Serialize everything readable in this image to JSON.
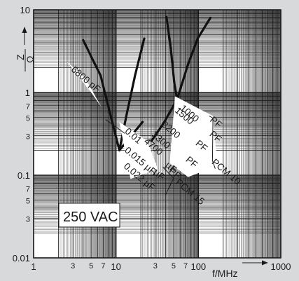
{
  "chart_data": {
    "type": "line",
    "xscale": "log",
    "yscale": "log",
    "xlim": [
      1,
      1000
    ],
    "ylim": [
      0.01,
      10
    ],
    "x_ticks": [
      {
        "v": 1,
        "t": "1",
        "small": false
      },
      {
        "v": 3,
        "t": "3",
        "small": true
      },
      {
        "v": 5,
        "t": "5",
        "small": true
      },
      {
        "v": 7,
        "t": "7",
        "small": true
      },
      {
        "v": 10,
        "t": "10",
        "small": false
      },
      {
        "v": 30,
        "t": "3",
        "small": true
      },
      {
        "v": 50,
        "t": "5",
        "small": true
      },
      {
        "v": 70,
        "t": "7",
        "small": true
      },
      {
        "v": 100,
        "t": "100",
        "small": false
      },
      {
        "v": 1000,
        "t": "1000",
        "small": false
      }
    ],
    "y_ticks": [
      {
        "v": 10,
        "t": "10",
        "small": false
      },
      {
        "v": 1,
        "t": "1",
        "small": false
      },
      {
        "v": 0.7,
        "t": "7",
        "small": true
      },
      {
        "v": 0.5,
        "t": "5",
        "small": true
      },
      {
        "v": 0.3,
        "t": "3",
        "small": true
      },
      {
        "v": 0.1,
        "t": "0.1",
        "small": false
      },
      {
        "v": 0.07,
        "t": "7",
        "small": true
      },
      {
        "v": 0.05,
        "t": "5",
        "small": true
      },
      {
        "v": 0.03,
        "t": "3",
        "small": true
      },
      {
        "v": 0.01,
        "t": "0.01",
        "small": false
      }
    ],
    "xlabel": "f/MHz",
    "ylabel_num": "Z",
    "ylabel_den": "Ω",
    "box_label": "250 VAC",
    "series": [
      {
        "key": "c6800p_left",
        "x": [
          4,
          6.5,
          8.5,
          11
        ],
        "y": [
          4.3,
          1.6,
          0.55,
          0.2
        ]
      },
      {
        "key": "c6800p_right",
        "x": [
          11,
          13.5,
          17,
          22
        ],
        "y": [
          0.2,
          0.55,
          1.6,
          4.5
        ]
      },
      {
        "key": "c6800p_ind",
        "x": [
          11,
          21
        ],
        "y": [
          0.2,
          0.44
        ]
      },
      {
        "key": "c1000p_left",
        "x": [
          41,
          46,
          51,
          55
        ],
        "y": [
          8.2,
          3.5,
          1.3,
          0.82
        ]
      },
      {
        "key": "c1000p_right",
        "x": [
          55,
          75,
          98,
          140
        ],
        "y": [
          0.82,
          2.2,
          4.5,
          8.0
        ]
      },
      {
        "key": "c1000p_ind",
        "x": [
          27,
          38,
          55
        ],
        "y": [
          0.26,
          0.43,
          0.82
        ]
      }
    ],
    "annotations": [
      {
        "t": "6800 pF",
        "x": 2.8,
        "y": 1.85,
        "rot": 40
      },
      {
        "t": "0.01",
        "x": 12.6,
        "y": 0.33,
        "rot": 40
      },
      {
        "t": "0.015 µF",
        "x": 12.5,
        "y": 0.195,
        "rot": 40
      },
      {
        "t": "0.022 µF",
        "x": 12.2,
        "y": 0.125,
        "rot": 40
      },
      {
        "t": "4700",
        "x": 21.5,
        "y": 0.25,
        "rot": 40
      },
      {
        "t": "3300",
        "x": 26.5,
        "y": 0.3,
        "rot": 40
      },
      {
        "t": "2200",
        "x": 35,
        "y": 0.4,
        "rot": 40
      },
      {
        "t": "1500",
        "x": 51,
        "y": 0.59,
        "rot": 40
      },
      {
        "t": "1000",
        "x": 59,
        "y": 0.63,
        "rot": 40
      },
      {
        "t": "PF",
        "x": 136,
        "y": 0.455,
        "rot": 40
      },
      {
        "t": "PF",
        "x": 134,
        "y": 0.305,
        "rot": 40
      },
      {
        "t": "PF",
        "x": 91,
        "y": 0.236,
        "rot": 40
      },
      {
        "t": "PF",
        "x": 69,
        "y": 0.15,
        "rot": 40
      },
      {
        "t": "PF",
        "x": 43,
        "y": 0.11,
        "rot": 40
      },
      {
        "t": "µF",
        "x": 39,
        "y": 0.129,
        "rot": 40
      },
      {
        "t": "µF",
        "x": 28,
        "y": 0.105,
        "rot": 40
      },
      {
        "t": "PCM 10",
        "x": 143,
        "y": 0.14,
        "rot": 40
      },
      {
        "t": "PCM 15",
        "x": 52,
        "y": 0.08,
        "rot": 40
      }
    ]
  }
}
